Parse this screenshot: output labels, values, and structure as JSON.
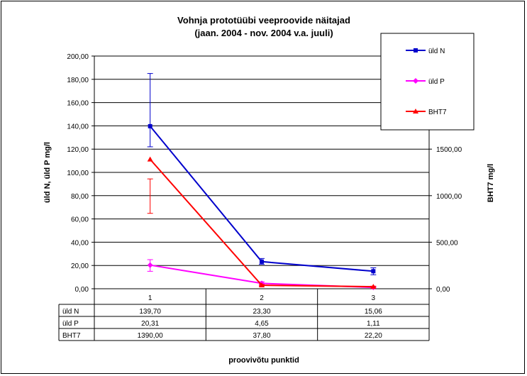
{
  "chart_data": {
    "type": "line",
    "title": [
      "Vohnja prototüübi veeproovide näitajad",
      "(jaan. 2004 - nov. 2004 v.a. juuli)"
    ],
    "xlabel": "proovivõtu punktid",
    "ylabel_left": "üld N, üld P  mg/l",
    "ylabel_right": "BHT7  mg/l",
    "categories": [
      "1",
      "2",
      "3"
    ],
    "y_left": {
      "min": 0,
      "max": 200,
      "step": 20,
      "tick_labels": [
        "0,00",
        "20,00",
        "40,00",
        "60,00",
        "80,00",
        "100,00",
        "120,00",
        "140,00",
        "160,00",
        "180,00",
        "200,00"
      ]
    },
    "y_right": {
      "min": 0,
      "max": 2500,
      "tick_values": [
        0,
        500,
        1000,
        1500
      ],
      "tick_labels": [
        "0,00",
        "500,00",
        "1000,00",
        "1500,00"
      ]
    },
    "grid": true,
    "legend_position": "top-right",
    "series": [
      {
        "name": "üld N",
        "axis": "left",
        "color": "#0000CC",
        "marker": "square",
        "values": [
          139.7,
          23.3,
          15.06
        ],
        "error": [
          [
            122,
            185
          ],
          [
            21,
            26
          ],
          [
            12,
            18
          ]
        ]
      },
      {
        "name": "üld P",
        "axis": "left",
        "color": "#FF00FF",
        "marker": "diamond",
        "values": [
          20.31,
          4.65,
          1.11
        ],
        "error": [
          [
            15,
            25
          ],
          [
            3,
            6
          ],
          [
            0.5,
            1.8
          ]
        ]
      },
      {
        "name": "BHT7",
        "axis": "right",
        "color": "#FF0000",
        "marker": "triangle",
        "values": [
          1390.0,
          37.8,
          22.2
        ],
        "error": [
          [
            810,
            1180
          ],
          [
            30,
            46
          ],
          [
            15,
            28
          ]
        ]
      }
    ],
    "table": {
      "rows": [
        {
          "label": "üld N",
          "cells": [
            "139,70",
            "23,30",
            "15,06"
          ]
        },
        {
          "label": "üld P",
          "cells": [
            "20,31",
            "4,65",
            "1,11"
          ]
        },
        {
          "label": "BHT7",
          "cells": [
            "1390,00",
            "37,80",
            "22,20"
          ]
        }
      ]
    }
  }
}
